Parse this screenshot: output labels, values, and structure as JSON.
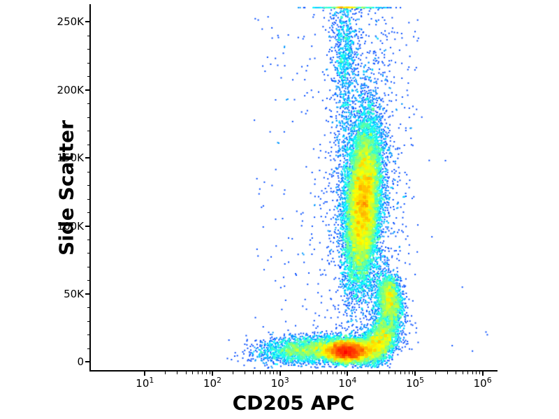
{
  "page": {
    "background": "#ffffff",
    "axis_color": "#000000"
  },
  "chart_data": {
    "type": "scatter",
    "variant": "flow_cytometry_density_dotplot",
    "title": "",
    "xlabel": "CD205 APC",
    "ylabel": "Side Scatter",
    "x_scale": "log10",
    "x_domain_log10": [
      0.2,
      6.2
    ],
    "y_domain": [
      -6000,
      262000
    ],
    "x_ticks": [
      {
        "base": "10",
        "exponent": "1"
      },
      {
        "base": "10",
        "exponent": "2"
      },
      {
        "base": "10",
        "exponent": "3"
      },
      {
        "base": "10",
        "exponent": "4"
      },
      {
        "base": "10",
        "exponent": "5"
      },
      {
        "base": "10",
        "exponent": "6"
      }
    ],
    "y_ticks": [
      {
        "value": 0,
        "label": "0"
      },
      {
        "value": 50000,
        "label": "50K"
      },
      {
        "value": 100000,
        "label": "100K"
      },
      {
        "value": 150000,
        "label": "150K"
      },
      {
        "value": 200000,
        "label": "200K"
      },
      {
        "value": 250000,
        "label": "250K"
      }
    ],
    "y_minor_tick_step": 10000,
    "grid": false,
    "legend": false,
    "colormap": "jet",
    "point_size": 2,
    "seed": 1337,
    "populations": [
      {
        "name": "debris_band_core",
        "cx": 4.0,
        "cy": 8000,
        "sx": 0.18,
        "sy": 4200,
        "rho": 0.0,
        "count": 6000
      },
      {
        "name": "debris_band_left_tail",
        "cx": 3.42,
        "cy": 9000,
        "sx": 0.36,
        "sy": 5200,
        "rho": 0.15,
        "count": 2400
      },
      {
        "name": "debris_band_right",
        "cx": 4.45,
        "cy": 13000,
        "sx": 0.15,
        "sy": 7500,
        "rho": 0.35,
        "count": 2000
      },
      {
        "name": "monocyte_population",
        "cx": 4.62,
        "cy": 47000,
        "sx": 0.1,
        "sy": 9500,
        "rho": -0.35,
        "count": 1600
      },
      {
        "name": "bridge_mono_debris",
        "cx": 4.55,
        "cy": 29000,
        "sx": 0.11,
        "sy": 11000,
        "rho": 0.3,
        "count": 900
      },
      {
        "name": "granulocyte_blob_core",
        "cx": 4.23,
        "cy": 117000,
        "sx": 0.13,
        "sy": 30000,
        "rho": 0.25,
        "count": 12000
      },
      {
        "name": "granulocyte_halo",
        "cx": 4.22,
        "cy": 120000,
        "sx": 0.3,
        "sy": 55000,
        "rho": 0.1,
        "count": 1400
      },
      {
        "name": "top_streak_dense",
        "cx": 3.95,
        "cy": 235000,
        "sx": 0.09,
        "sy": 25000,
        "rho": 0.0,
        "count": 500,
        "clamp_top": true
      },
      {
        "name": "top_streak_spread",
        "cx": 3.97,
        "cy": 205000,
        "sx": 0.11,
        "sy": 38000,
        "rho": 0.0,
        "count": 420,
        "clamp_top": true
      },
      {
        "name": "top_pileup_line",
        "cx": 4.02,
        "cy": 268000,
        "sx": 0.26,
        "sy": 5000,
        "rho": 0.0,
        "count": 230,
        "clamp_top": true
      },
      {
        "name": "upper_right_sparse",
        "cx": 4.32,
        "cy": 222000,
        "sx": 0.24,
        "sy": 26000,
        "rho": 0.0,
        "count": 120
      },
      {
        "name": "background_sparse",
        "uniform": true,
        "x_range": [
          2.6,
          5.05
        ],
        "y_range": [
          0,
          258000
        ],
        "count": 330
      }
    ],
    "outliers": [
      [
        5.45,
        148000
      ],
      [
        5.25,
        92000
      ],
      [
        5.7,
        55000
      ],
      [
        6.05,
        22000
      ],
      [
        6.07,
        20000
      ],
      [
        5.55,
        12000
      ],
      [
        5.85,
        8000
      ],
      [
        5.1,
        180000
      ],
      [
        4.9,
        205000
      ],
      [
        5.05,
        238000
      ]
    ]
  }
}
